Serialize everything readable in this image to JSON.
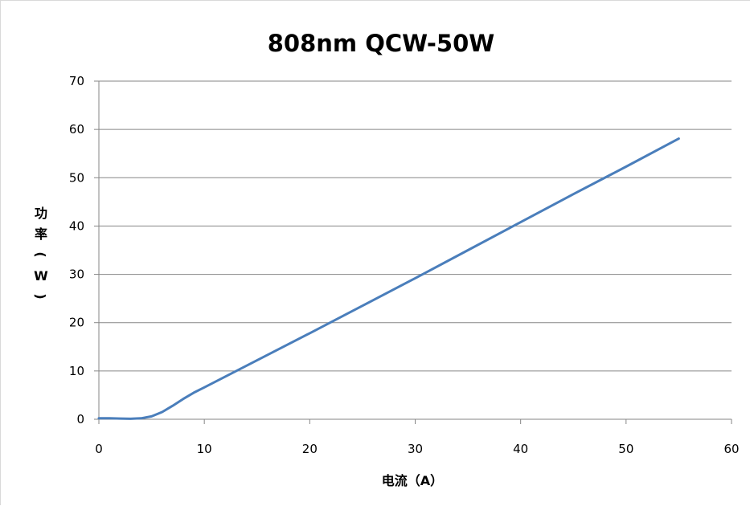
{
  "chart_data": {
    "type": "line",
    "title": "808nm QCW-50W",
    "xlabel": "电流（A）",
    "ylabel": "功率（W）",
    "xlim": [
      0,
      60
    ],
    "ylim": [
      0,
      70
    ],
    "x_ticks": [
      0,
      10,
      20,
      30,
      40,
      50,
      60
    ],
    "y_ticks": [
      0,
      10,
      20,
      30,
      40,
      50,
      60,
      70
    ],
    "grid": "horizontal",
    "legend": "none",
    "series": [
      {
        "color": "#4a7ebb",
        "x": [
          0,
          1,
          2,
          3,
          4,
          5,
          6,
          7,
          8,
          9,
          10,
          15,
          20,
          25,
          30,
          35,
          40,
          45,
          50,
          55
        ],
        "y": [
          0.2,
          0.2,
          0.15,
          0.1,
          0.2,
          0.6,
          1.5,
          2.8,
          4.2,
          5.5,
          6.6,
          12.2,
          17.8,
          23.5,
          29.2,
          35.0,
          40.8,
          46.6,
          52.3,
          58.1
        ]
      }
    ]
  }
}
